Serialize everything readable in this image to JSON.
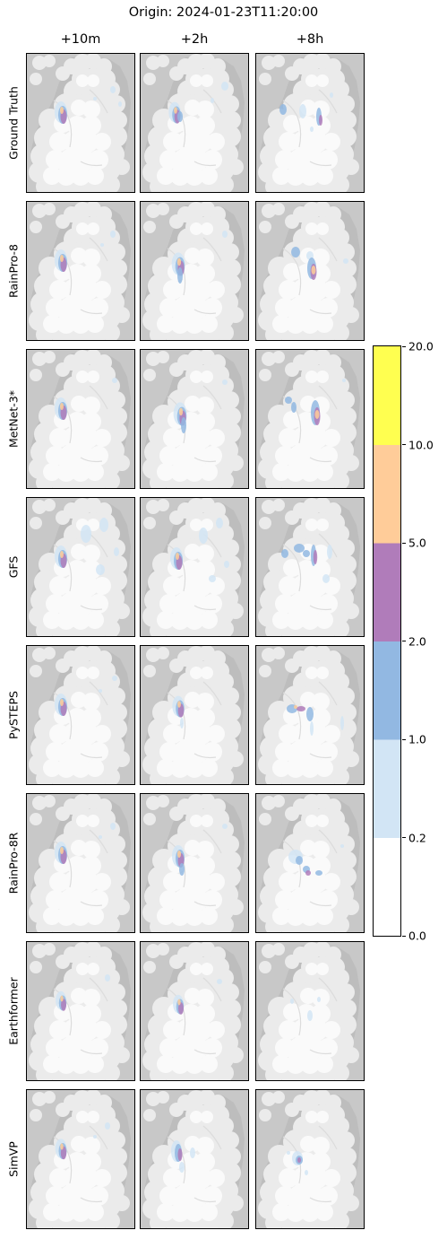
{
  "title": "Origin: 2024-01-23T11:20:00",
  "columns": [
    "+10m",
    "+2h",
    "+8h"
  ],
  "rows": [
    "Ground Truth",
    "RainPro-8",
    "MetNet-3*",
    "GFS",
    "PySTEPS",
    "RainPro-8R",
    "Earthformer",
    "SimVP"
  ],
  "colorbar": {
    "ticks": [
      "0.0",
      "0.2",
      "1.0",
      "2.0",
      "5.0",
      "10.0",
      "20.0"
    ],
    "colors": [
      "#ffffff",
      "#d2e5f5",
      "#92b8e2",
      "#b07cba",
      "#ffcc99",
      "#ffff50"
    ]
  },
  "chart_data": {
    "type": "heatmap",
    "title": "Origin: 2024-01-23T11:20:00",
    "x_categories": [
      "+10m",
      "+2h",
      "+8h"
    ],
    "y_categories": [
      "Ground Truth",
      "RainPro-8",
      "MetNet-3*",
      "GFS",
      "PySTEPS",
      "RainPro-8R",
      "Earthformer",
      "SimVP"
    ],
    "color_scale": {
      "boundaries": [
        0.0,
        0.2,
        1.0,
        2.0,
        5.0,
        10.0,
        20.0
      ],
      "colors": [
        "#ffffff",
        "#d2e5f5",
        "#92b8e2",
        "#b07cba",
        "#ffcc99",
        "#ffff50"
      ]
    }
  }
}
